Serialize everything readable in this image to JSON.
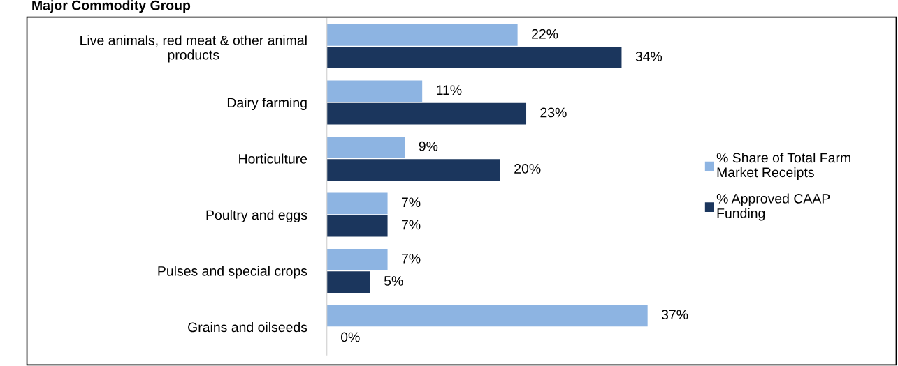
{
  "chart_data": {
    "type": "bar",
    "orientation": "horizontal",
    "title": "Major Commodity Group",
    "categories": [
      "Live animals, red meat & other animal\nproducts",
      "Dairy farming",
      "Horticulture",
      "Poultry and eggs",
      "Pulses and special crops",
      "Grains and oilseeds"
    ],
    "series": [
      {
        "name": "% Share of Total Farm\nMarket Receipts",
        "color": "#8db4e2",
        "values": [
          22,
          11,
          9,
          7,
          7,
          37
        ],
        "value_labels": [
          "22%",
          "11%",
          "9%",
          "7%",
          "7%",
          "37%"
        ]
      },
      {
        "name": "% Approved CAAP\nFunding",
        "color": "#1b365d",
        "values": [
          34,
          23,
          20,
          7,
          5,
          0
        ],
        "value_labels": [
          "34%",
          "23%",
          "20%",
          "7%",
          "5%",
          "0%"
        ]
      }
    ],
    "legend": "right",
    "grid": false
  }
}
